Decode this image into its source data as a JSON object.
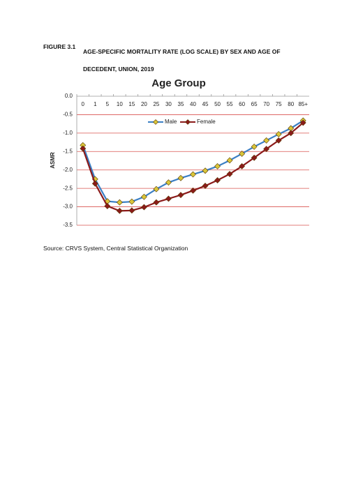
{
  "figure": {
    "label": "FIGURE 3.1",
    "caption": "AGE-SPECIFIC MORTALITY RATE (LOG SCALE) BY SEX AND AGE OF DECEDENT, UNION, 2019"
  },
  "source": "Source: CRVS System, Central Statistical Organization",
  "chart_data": {
    "type": "line",
    "title": "Age Group",
    "y_label": "ASMR",
    "categories": [
      "0",
      "1",
      "5",
      "10",
      "15",
      "20",
      "25",
      "30",
      "35",
      "40",
      "45",
      "50",
      "55",
      "60",
      "65",
      "70",
      "75",
      "80",
      "85+"
    ],
    "series": [
      {
        "name": "Male",
        "color": "#3b7fc4",
        "marker_color": "#d9c63a",
        "values": [
          -1.33,
          -2.25,
          -2.85,
          -2.88,
          -2.86,
          -2.73,
          -2.52,
          -2.34,
          -2.22,
          -2.12,
          -2.02,
          -1.9,
          -1.74,
          -1.56,
          -1.37,
          -1.2,
          -1.03,
          -0.87,
          -0.66
        ]
      },
      {
        "name": "Female",
        "color": "#8b1a1a",
        "marker_color": "#8b1a1a",
        "values": [
          -1.42,
          -2.37,
          -2.98,
          -3.11,
          -3.1,
          -3.01,
          -2.88,
          -2.78,
          -2.68,
          -2.56,
          -2.43,
          -2.28,
          -2.11,
          -1.9,
          -1.67,
          -1.43,
          -1.2,
          -1.0,
          -0.72
        ]
      }
    ],
    "ylim": [
      -3.5,
      0
    ],
    "yticks": [
      {
        "value": 0,
        "label": "0.0"
      },
      -0.5,
      {
        "value": -1,
        "label": "-1.0"
      },
      -1.5,
      {
        "value": -2,
        "label": "-2.0"
      },
      -2.5,
      {
        "value": -3,
        "label": "-3.0"
      },
      -3.5
    ],
    "grid": true,
    "grid_color": "#d9534f",
    "legend": "top"
  }
}
